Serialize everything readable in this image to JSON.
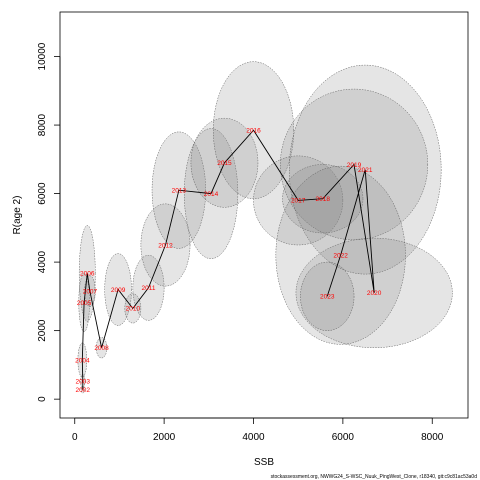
{
  "chart_data": {
    "type": "scatter",
    "title": "",
    "xlabel": "SSB",
    "ylabel": "R(age 2)",
    "xlim": [
      -330,
      8800
    ],
    "ylim": [
      -550,
      11300
    ],
    "x_ticks": [
      0,
      2000,
      4000,
      6000,
      8000
    ],
    "y_ticks": [
      0,
      2000,
      4000,
      6000,
      8000,
      10000
    ],
    "grid": false,
    "legend": "none",
    "colors": {
      "line": "#000000",
      "labels": "#ff0000",
      "ellipse_fill": "#7f7f7f",
      "ellipse_stroke": "#555555"
    },
    "points": [
      {
        "year": "2002",
        "x": 180,
        "y": 280,
        "sx": 40,
        "sy": 100
      },
      {
        "year": "2003",
        "x": 180,
        "y": 530,
        "sx": 50,
        "sy": 200
      },
      {
        "year": "2004",
        "x": 170,
        "y": 1140,
        "sx": 100,
        "sy": 500
      },
      {
        "year": "2005",
        "x": 210,
        "y": 2820,
        "sx": 120,
        "sy": 850
      },
      {
        "year": "2006",
        "x": 280,
        "y": 3670,
        "sx": 180,
        "sy": 1400
      },
      {
        "year": "2007",
        "x": 340,
        "y": 3150,
        "sx": 120,
        "sy": 450
      },
      {
        "year": "2008",
        "x": 600,
        "y": 1500,
        "sx": 120,
        "sy": 300
      },
      {
        "year": "2009",
        "x": 970,
        "y": 3200,
        "sx": 300,
        "sy": 1050
      },
      {
        "year": "2010",
        "x": 1300,
        "y": 2650,
        "sx": 180,
        "sy": 430
      },
      {
        "year": "2011",
        "x": 1650,
        "y": 3250,
        "sx": 350,
        "sy": 950
      },
      {
        "year": "2012",
        "x": 2030,
        "y": 4500,
        "sx": 550,
        "sy": 1200
      },
      {
        "year": "2013",
        "x": 2330,
        "y": 6100,
        "sx": 600,
        "sy": 1700
      },
      {
        "year": "2014",
        "x": 3050,
        "y": 6000,
        "sx": 600,
        "sy": 1900
      },
      {
        "year": "2015",
        "x": 3350,
        "y": 6900,
        "sx": 750,
        "sy": 1300
      },
      {
        "year": "2016",
        "x": 4000,
        "y": 7850,
        "sx": 900,
        "sy": 2000
      },
      {
        "year": "2017",
        "x": 5000,
        "y": 5800,
        "sx": 1000,
        "sy": 1300
      },
      {
        "year": "2018",
        "x": 5550,
        "y": 5850,
        "sx": 900,
        "sy": 1000
      },
      {
        "year": "2019",
        "x": 6250,
        "y": 6850,
        "sx": 1650,
        "sy": 2200
      },
      {
        "year": "2020",
        "x": 6700,
        "y": 3100,
        "sx": 1750,
        "sy": 1600
      },
      {
        "year": "2021",
        "x": 6500,
        "y": 6700,
        "sx": 1700,
        "sy": 3050
      },
      {
        "year": "2022",
        "x": 5950,
        "y": 4200,
        "sx": 1450,
        "sy": 2600
      },
      {
        "year": "2023",
        "x": 5650,
        "y": 3000,
        "sx": 600,
        "sy": 1000
      }
    ]
  },
  "footnote": "stockassessment.org, NWWG24_S-WSC_Nuuk_PingWest_Clone, r18340, git:c9c81ac53a0d"
}
